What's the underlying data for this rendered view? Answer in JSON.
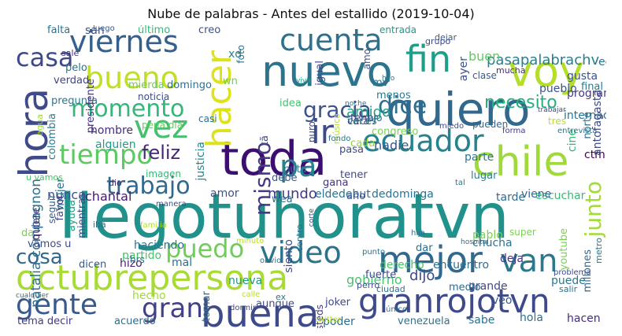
{
  "title": "Nube de palabras - Antes del estallido (2019-10-04)",
  "words": [
    {
      "text": "llegotuhoratvn",
      "color": "#21918c"
    },
    {
      "text": "toda",
      "color": "#3b0f70"
    },
    {
      "text": "quiero",
      "color": "#31688e"
    },
    {
      "text": "chile",
      "color": "#9fda3a"
    },
    {
      "text": "hora",
      "color": "#3e4a89"
    },
    {
      "text": "voy",
      "color": "#b5de2b"
    },
    {
      "text": "nuevo",
      "color": "#2c738e"
    },
    {
      "text": "octubrepersona",
      "color": "#a8db34"
    },
    {
      "text": "mejor",
      "color": "#31688e"
    },
    {
      "text": "granrojotvn",
      "color": "#3e4a89"
    },
    {
      "text": "buena",
      "color": "#3e4a89"
    },
    {
      "text": "hacer",
      "color": "#dde318"
    },
    {
      "text": "ecuador",
      "color": "#26828e"
    },
    {
      "text": "video",
      "color": "#2c738e"
    },
    {
      "text": "fin",
      "color": "#1f9e89"
    },
    {
      "text": "cuenta",
      "color": "#2c728e"
    },
    {
      "text": "viernes",
      "color": "#355f8d"
    },
    {
      "text": "bueno",
      "color": "#c0df25"
    },
    {
      "text": "tiempo",
      "color": "#5ec962"
    },
    {
      "text": "vez",
      "color": "#46c06f"
    },
    {
      "text": "momento",
      "color": "#35b779"
    },
    {
      "text": "gente",
      "color": "#38598c"
    },
    {
      "text": "van",
      "color": "#2a788e"
    },
    {
      "text": "ir",
      "color": "#3e4a89"
    },
    {
      "text": "puedo",
      "color": "#6ece58"
    },
    {
      "text": "pa",
      "color": "#26828e"
    },
    {
      "text": "gran",
      "color": "#424086"
    },
    {
      "text": "mismo",
      "color": "#443983"
    },
    {
      "text": "dice",
      "color": "#2e6f8e"
    },
    {
      "text": "gracia",
      "color": "#3b528b"
    },
    {
      "text": "trabajo",
      "color": "#31688e"
    },
    {
      "text": "cosa",
      "color": "#31688e"
    },
    {
      "text": "junto",
      "color": "#a5db36"
    },
    {
      "text": "casa",
      "color": "#3e4a89"
    },
    {
      "text": "feliz",
      "color": "#482677"
    },
    {
      "text": "pasapalabrachv",
      "color": "#287d8e"
    },
    {
      "text": "gobierno",
      "color": "#4ac16d"
    },
    {
      "text": "necesito",
      "color": "#29af7f"
    },
    {
      "text": "amigo",
      "color": "#1fa187"
    },
    {
      "text": "mundo",
      "color": "#443a83"
    },
    {
      "text": "natalia compagnon",
      "color": "#2d708e"
    },
    {
      "text": "dijo",
      "color": "#3e4989"
    },
    {
      "text": "nadie",
      "color": "#39558c"
    },
    {
      "text": "buen",
      "color": "#5ec962"
    },
    {
      "text": "nunca",
      "color": "#3a548c"
    },
    {
      "text": "hecho",
      "color": "#a0da39"
    },
    {
      "text": "puede",
      "color": "#2a788e"
    },
    {
      "text": "hombre",
      "color": "#472d7b"
    },
    {
      "text": "alguien",
      "color": "#1e9b8a"
    },
    {
      "text": "chantal",
      "color": "#481a6c"
    },
    {
      "text": "u vamos",
      "color": "#4ec36b"
    },
    {
      "text": "justicia",
      "color": "#24868e"
    },
    {
      "text": "pena dia",
      "color": "#62cb5f"
    },
    {
      "text": "escuchar",
      "color": "#38b977"
    },
    {
      "text": "elde",
      "color": "#2c728e"
    },
    {
      "text": "debut",
      "color": "#2c728e"
    },
    {
      "text": "dedominga",
      "color": "#2c728e"
    },
    {
      "text": "parte",
      "color": "#2a788e"
    },
    {
      "text": "ctm",
      "color": "#440154"
    },
    {
      "text": "tarde",
      "color": "#306a8e"
    },
    {
      "text": "viene",
      "color": "#31688e"
    },
    {
      "text": "tema decir",
      "color": "#443983"
    },
    {
      "text": "acuerdo",
      "color": "#2e6e8e"
    },
    {
      "text": "hola",
      "color": "#2e6f8e"
    },
    {
      "text": "hacen",
      "color": "#472c7a"
    },
    {
      "text": "sabe",
      "color": "#2d718e"
    },
    {
      "text": "venezuela",
      "color": "#2c738e"
    },
    {
      "text": "poder",
      "color": "#2f6c8e"
    },
    {
      "text": "joker",
      "color": "#3e4a89"
    },
    {
      "text": "grande",
      "color": "#3f4889"
    },
    {
      "text": "medio",
      "color": "#2f6b8e"
    },
    {
      "text": "veo",
      "color": "#38598c"
    },
    {
      "text": "deja",
      "color": "#46337f"
    },
    {
      "text": "pablo",
      "color": "#7ad151"
    },
    {
      "text": "encuentro",
      "color": "#2e6e8e"
    },
    {
      "text": "derecho",
      "color": "#4ac16d"
    },
    {
      "text": "dar",
      "color": "#2f6b8e"
    },
    {
      "text": "siento",
      "color": "#3e4a89"
    },
    {
      "text": "nueva",
      "color": "#1f998a"
    },
    {
      "text": "amor",
      "color": "#3b528b"
    },
    {
      "text": "debe",
      "color": "#38598c"
    },
    {
      "text": "gana",
      "color": "#46337f"
    },
    {
      "text": "mal",
      "color": "#2d708e"
    },
    {
      "text": "hizo",
      "color": "#481f70"
    },
    {
      "text": "partido",
      "color": "#4ac16d"
    },
    {
      "text": "haciendo",
      "color": "#2a788e"
    },
    {
      "text": "mujer",
      "color": "#2c738e"
    },
    {
      "text": "vamos u",
      "color": "#3e4a89"
    },
    {
      "text": "da",
      "color": "#7ad151"
    },
    {
      "text": "quiere",
      "color": "#46337f"
    },
    {
      "text": "seguir",
      "color": "#365c8d"
    },
    {
      "text": "favor",
      "color": "#3f4788"
    },
    {
      "text": "ayuda",
      "color": "#1fa187"
    },
    {
      "text": "mientras",
      "color": "#3f4889"
    },
    {
      "text": "dicen",
      "color": "#365c8d"
    },
    {
      "text": "hrs",
      "color": "#2e6e8e"
    },
    {
      "text": "iba",
      "color": "#2e6e8e"
    },
    {
      "text": "dio",
      "color": "#482475"
    },
    {
      "text": "pregunta",
      "color": "#2a788e"
    },
    {
      "text": "colombia",
      "color": "#277f8e"
    },
    {
      "text": "agua",
      "color": "#9fda3a"
    },
    {
      "text": "verdad",
      "color": "#414487"
    },
    {
      "text": "mierda",
      "color": "#6ece58"
    },
    {
      "text": "domingo",
      "color": "#2d708e"
    },
    {
      "text": "presidente",
      "color": "#46337f"
    },
    {
      "text": "último",
      "color": "#35b779"
    },
    {
      "text": "creo",
      "color": "#39558c"
    },
    {
      "text": "falta",
      "color": "#2c738e"
    },
    {
      "text": "san",
      "color": "#3b528b"
    },
    {
      "text": "sale",
      "color": "#472d7b"
    },
    {
      "text": "pelo",
      "color": "#2c728e"
    },
    {
      "text": "luego",
      "color": "#39558c"
    },
    {
      "text": "wn",
      "color": "#6ece58"
    },
    {
      "text": "xd",
      "color": "#26828e"
    },
    {
      "text": "foto",
      "color": "#2c728e"
    },
    {
      "text": "igual",
      "color": "#3e4a89"
    },
    {
      "text": "entrada",
      "color": "#1f998a"
    },
    {
      "text": "grupo",
      "color": "#3e4a89"
    },
    {
      "text": "dejar",
      "color": "#38598c"
    },
    {
      "text": "amo",
      "color": "#3e4a89"
    },
    {
      "text": "mv",
      "color": "#2c728e"
    },
    {
      "text": "menos",
      "color": "#2a788e"
    },
    {
      "text": "ayer",
      "color": "#3b528b"
    },
    {
      "text": "clase",
      "color": "#38598c"
    },
    {
      "text": "mucha",
      "color": "#472c7a"
    },
    {
      "text": "final",
      "color": "#2a788e"
    },
    {
      "text": "gusta",
      "color": "#39558c"
    },
    {
      "text": "programa",
      "color": "#443983"
    },
    {
      "text": "pueblo",
      "color": "#3b528b"
    },
    {
      "text": "internacional",
      "color": "#2c728e"
    },
    {
      "text": "idea",
      "color": "#46c06f"
    },
    {
      "text": "vivo",
      "color": "#1fa187"
    },
    {
      "text": "hijo",
      "color": "#2a788e"
    },
    {
      "text": "tener",
      "color": "#3e4a89"
    },
    {
      "text": "ojo",
      "color": "#2e6e8e"
    },
    {
      "text": "cara",
      "color": "#3e4a89"
    },
    {
      "text": "cada",
      "color": "#95d840"
    },
    {
      "text": "pasa",
      "color": "#3e4989"
    },
    {
      "text": "puta",
      "color": "#2c728e"
    },
    {
      "text": "wea",
      "color": "#2e6e8e"
    },
    {
      "text": "año",
      "color": "#3e4a89"
    },
    {
      "text": "tener",
      "color": "#3e4a89"
    },
    {
      "text": "veces",
      "color": "#2c728e"
    },
    {
      "text": "congreso",
      "color": "#7ad151"
    },
    {
      "text": "pueden",
      "color": "#31688e"
    },
    {
      "text": "cine",
      "color": "#35b779"
    },
    {
      "text": "norte",
      "color": "#2c728e"
    },
    {
      "text": "entrevista",
      "color": "#2a788e"
    },
    {
      "text": "forma",
      "color": "#443983"
    },
    {
      "text": "lugar",
      "color": "#26828e"
    },
    {
      "text": "tal",
      "color": "#2c728e"
    },
    {
      "text": "super",
      "color": "#7ad151"
    },
    {
      "text": "chucha",
      "color": "#2c728e"
    },
    {
      "text": "youtube",
      "color": "#7ad151"
    },
    {
      "text": "millones",
      "color": "#31688e"
    },
    {
      "text": "metro",
      "color": "#2c728e"
    },
    {
      "text": "problema",
      "color": "#3e4a89"
    },
    {
      "text": "salir",
      "color": "#2c728e"
    },
    {
      "text": "perro",
      "color": "#3e4a89"
    },
    {
      "text": "ciudad",
      "color": "#2c728e"
    },
    {
      "text": "usteds",
      "color": "#443983"
    },
    {
      "text": "fuerte",
      "color": "#3e4a89"
    },
    {
      "text": "punto",
      "color": "#2c728e"
    },
    {
      "text": "único",
      "color": "#2c728e"
    },
    {
      "text": "twitter",
      "color": "#b5de2b"
    },
    {
      "text": "ex",
      "color": "#2c728e"
    },
    {
      "text": "aunque",
      "color": "#3e4a89"
    },
    {
      "text": "calle",
      "color": "#b5de2b"
    },
    {
      "text": "tomar",
      "color": "#2c728e"
    },
    {
      "text": "dormir",
      "color": "#3e4a89"
    },
    {
      "text": "minuto",
      "color": "#b5de2b"
    },
    {
      "text": "obvio",
      "color": "#2c728e"
    },
    {
      "text": "centro",
      "color": "#2c728e"
    },
    {
      "text": "corte",
      "color": "#3e4a89"
    },
    {
      "text": "hija",
      "color": "#2c728e"
    },
    {
      "text": "hospital",
      "color": "#2c728e"
    },
    {
      "text": "imagen",
      "color": "#35b779"
    },
    {
      "text": "familia",
      "color": "#b5de2b"
    },
    {
      "text": "manera",
      "color": "#3e4a89"
    },
    {
      "text": "casi",
      "color": "#2c728e"
    },
    {
      "text": "noticia",
      "color": "#3e4a89"
    },
    {
      "text": "noche",
      "color": "#2c728e"
    },
    {
      "text": "música",
      "color": "#b5de2b"
    },
    {
      "text": "puro",
      "color": "#3e4a89"
    },
    {
      "text": "fondo",
      "color": "#2c728e"
    },
    {
      "text": "miedo",
      "color": "#3e4a89"
    },
    {
      "text": "trabajar",
      "color": "#3e4a89"
    },
    {
      "text": "tres",
      "color": "#b5de2b"
    },
    {
      "text": "antofagasta",
      "color": "#3e4a89"
    },
    {
      "text": "tã",
      "color": "#3e4a89"
    },
    {
      "text": "equipo",
      "color": "#2c728e"
    },
    {
      "text": "cualquier",
      "color": "#2c728e"
    }
  ]
}
